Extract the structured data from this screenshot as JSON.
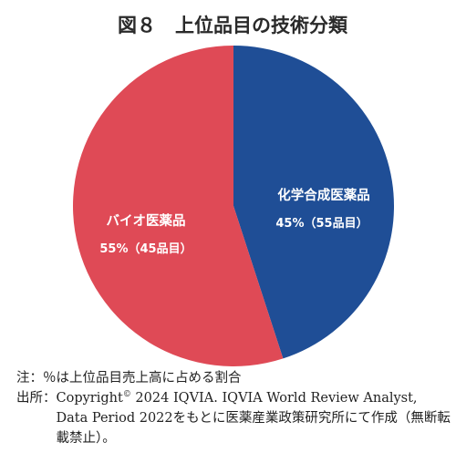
{
  "chart_data": {
    "type": "pie",
    "title": "図８　上位品目の技術分類",
    "slices": [
      {
        "label": "化学合成医薬品",
        "value": 45,
        "count_text": "45%（55品目）",
        "color": "#1f4e96"
      },
      {
        "label": "バイオ医薬品",
        "value": 55,
        "count_text": "55%（45品目）",
        "color": "#df4a56"
      }
    ]
  },
  "notes": {
    "note_key": "注：",
    "note_text": "％は上位品目売上高に占める割合",
    "source_key": "出所：",
    "source_text_1": "Copyright",
    "source_sup": "©",
    "source_text_2": " 2024 IQVIA. IQVIA World Review Analyst, Data Period 2022をもとに医薬産業政策研究所にて作成（無断転載禁止）。"
  }
}
